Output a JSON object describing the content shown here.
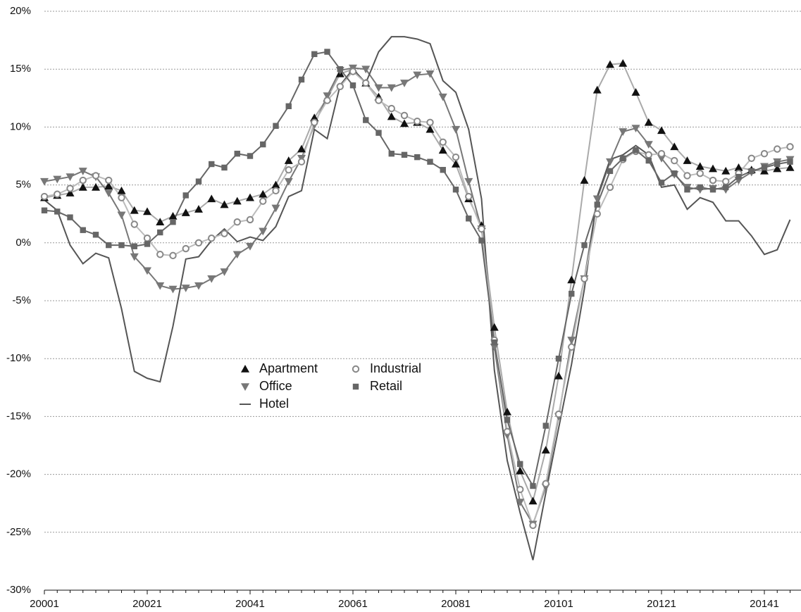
{
  "chart_data": {
    "type": "line",
    "categories": [
      "20001",
      null,
      null,
      null,
      null,
      null,
      null,
      null,
      "20021",
      null,
      null,
      null,
      null,
      null,
      null,
      null,
      "20041",
      null,
      null,
      null,
      null,
      null,
      null,
      null,
      "20061",
      null,
      null,
      null,
      null,
      null,
      null,
      null,
      "20081",
      null,
      null,
      null,
      null,
      null,
      null,
      null,
      "20101",
      null,
      null,
      null,
      null,
      null,
      null,
      null,
      "20121",
      null,
      null,
      null,
      null,
      null,
      null,
      null,
      "20141",
      null,
      null
    ],
    "ylim": [
      -30,
      20
    ],
    "yticks": [
      {
        "value": -30,
        "label": "-30%"
      },
      {
        "value": -25,
        "label": "-25%"
      },
      {
        "value": -20,
        "label": "-20%"
      },
      {
        "value": -15,
        "label": "-15%"
      },
      {
        "value": -10,
        "label": "-10%"
      },
      {
        "value": -5,
        "label": "-5%"
      },
      {
        "value": 0,
        "label": "0%"
      },
      {
        "value": 5,
        "label": "5%"
      },
      {
        "value": 10,
        "label": "10%"
      },
      {
        "value": 15,
        "label": "15%"
      },
      {
        "value": 20,
        "label": "20%"
      }
    ],
    "grid": true,
    "series": [
      {
        "name": "Apartment",
        "marker": "triangle-up",
        "color": "#111111",
        "line_color": "#aaaaaa",
        "values": [
          3.9,
          4.1,
          4.3,
          4.8,
          4.8,
          4.9,
          4.5,
          2.8,
          2.7,
          1.8,
          2.3,
          2.6,
          2.9,
          3.8,
          3.3,
          3.6,
          3.9,
          4.2,
          5.0,
          7.1,
          8.1,
          10.8,
          12.5,
          14.6,
          15.0,
          13.8,
          12.6,
          10.9,
          10.3,
          10.4,
          9.8,
          8.0,
          6.8,
          3.8,
          1.5,
          -7.3,
          -14.6,
          -19.7,
          -22.3,
          -17.9,
          -11.5,
          -3.2,
          5.4,
          13.2,
          15.4,
          15.5,
          13.0,
          10.4,
          9.7,
          8.3,
          7.1,
          6.6,
          6.4,
          6.2,
          6.5,
          6.3,
          6.2,
          6.4,
          6.5
        ]
      },
      {
        "name": "Office",
        "marker": "triangle-down",
        "color": "#777777",
        "line_color": "#777777",
        "values": [
          5.3,
          5.5,
          5.7,
          6.2,
          5.7,
          4.3,
          2.4,
          -1.2,
          -2.4,
          -3.7,
          -4.0,
          -3.9,
          -3.7,
          -3.1,
          -2.5,
          -1.0,
          -0.3,
          1.0,
          3.0,
          5.3,
          7.3,
          10.2,
          12.7,
          14.9,
          15.1,
          15.0,
          13.4,
          13.4,
          13.8,
          14.5,
          14.6,
          12.6,
          9.8,
          5.3,
          1.2,
          -9.0,
          -16.6,
          -22.4,
          -24.3,
          -21.1,
          -15.0,
          -8.4,
          -3.1,
          3.8,
          7.0,
          9.6,
          9.9,
          8.5,
          7.3,
          5.9,
          4.8,
          4.6,
          4.7,
          4.6,
          5.4,
          6.1,
          6.6,
          7.0,
          7.2
        ]
      },
      {
        "name": "Hotel",
        "marker": "none",
        "color": "#555555",
        "line_color": "#555555",
        "values": [
          3.7,
          2.8,
          -0.2,
          -1.8,
          -0.9,
          -1.3,
          -5.7,
          -11.1,
          -11.7,
          -12.0,
          -7.2,
          -1.4,
          -1.2,
          0.2,
          1.2,
          0.1,
          0.5,
          0.2,
          1.4,
          4.0,
          4.5,
          9.8,
          9.0,
          13.6,
          15.0,
          13.8,
          16.5,
          17.8,
          17.8,
          17.6,
          17.2,
          14.0,
          13.0,
          9.8,
          3.8,
          -11.0,
          -18.8,
          -23.3,
          -27.4,
          -21.6,
          -16.0,
          -10.5,
          -4.0,
          4.0,
          7.2,
          7.6,
          8.4,
          7.6,
          4.8,
          5.0,
          2.9,
          3.9,
          3.5,
          1.9,
          1.9,
          0.6,
          -1.0,
          -0.6,
          2.0
        ]
      },
      {
        "name": "Industrial",
        "marker": "circle",
        "color": "#888888",
        "line_color": "#bbbbbb",
        "values": [
          4.0,
          4.2,
          4.7,
          5.4,
          5.8,
          5.4,
          3.9,
          1.6,
          0.4,
          -1.0,
          -1.1,
          -0.5,
          0.0,
          0.4,
          0.8,
          1.8,
          2.0,
          3.6,
          4.5,
          6.3,
          7.0,
          10.4,
          12.3,
          13.5,
          14.8,
          13.8,
          12.3,
          11.6,
          11.0,
          10.5,
          10.4,
          8.7,
          7.4,
          4.0,
          1.2,
          -8.4,
          -16.3,
          -21.3,
          -24.4,
          -20.8,
          -14.8,
          -9.0,
          -3.1,
          2.5,
          4.8,
          7.2,
          7.9,
          7.6,
          7.7,
          7.1,
          5.8,
          6.0,
          5.4,
          5.3,
          6.0,
          7.3,
          7.7,
          8.1,
          8.3
        ]
      },
      {
        "name": "Retail",
        "marker": "square",
        "color": "#666666",
        "line_color": "#666666",
        "values": [
          2.8,
          2.7,
          2.2,
          1.1,
          0.7,
          -0.2,
          -0.2,
          -0.3,
          -0.1,
          0.9,
          1.8,
          4.1,
          5.3,
          6.8,
          6.5,
          7.7,
          7.5,
          8.5,
          10.1,
          11.8,
          14.1,
          16.3,
          16.5,
          15.0,
          13.6,
          10.6,
          9.5,
          7.7,
          7.6,
          7.4,
          7.0,
          6.3,
          4.6,
          2.1,
          0.2,
          -8.6,
          -15.3,
          -19.1,
          -21.0,
          -15.8,
          -10.0,
          -4.4,
          -0.2,
          3.3,
          6.2,
          7.3,
          8.0,
          7.1,
          5.2,
          6.0,
          4.6,
          4.8,
          4.6,
          4.8,
          5.7,
          6.2,
          6.5,
          6.8,
          7.0
        ]
      }
    ]
  }
}
